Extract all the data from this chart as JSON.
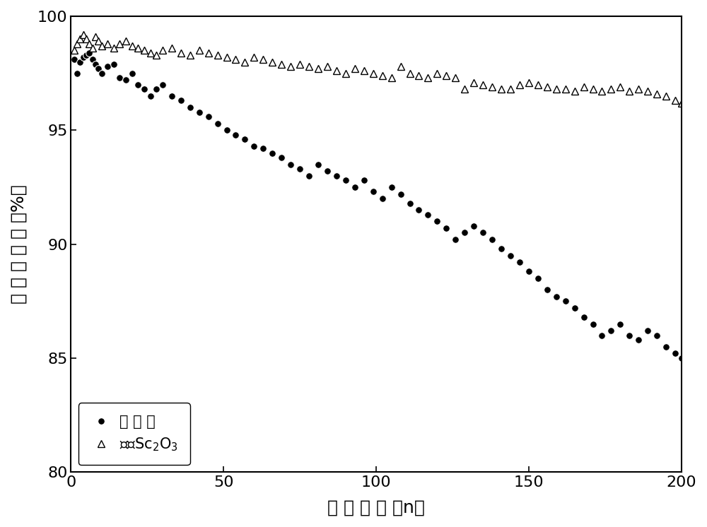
{
  "title": "",
  "xlabel": "循 环 周 数 （n）",
  "ylabel": "容 量 保 持 率 （%）",
  "xlim": [
    0,
    200
  ],
  "ylim": [
    80,
    100
  ],
  "xticks": [
    0,
    50,
    100,
    150,
    200
  ],
  "yticks": [
    80,
    85,
    90,
    95,
    100
  ],
  "legend_labels": [
    "未 包 覆",
    "包覆Sc$_2$O$_3$"
  ],
  "background_color": "#ffffff",
  "uncoated_x": [
    1,
    2,
    3,
    4,
    5,
    6,
    7,
    8,
    9,
    10,
    12,
    14,
    16,
    18,
    20,
    22,
    24,
    26,
    28,
    30,
    33,
    36,
    39,
    42,
    45,
    48,
    51,
    54,
    57,
    60,
    63,
    66,
    69,
    72,
    75,
    78,
    81,
    84,
    87,
    90,
    93,
    96,
    99,
    102,
    105,
    108,
    111,
    114,
    117,
    120,
    123,
    126,
    129,
    132,
    135,
    138,
    141,
    144,
    147,
    150,
    153,
    156,
    159,
    162,
    165,
    168,
    171,
    174,
    177,
    180,
    183,
    186,
    189,
    192,
    195,
    198,
    200
  ],
  "uncoated_y": [
    98.1,
    97.5,
    98.0,
    98.2,
    98.3,
    98.4,
    98.1,
    97.9,
    97.7,
    97.5,
    97.8,
    97.9,
    97.3,
    97.2,
    97.5,
    97.0,
    96.8,
    96.5,
    96.8,
    97.0,
    96.5,
    96.3,
    96.0,
    95.8,
    95.6,
    95.3,
    95.0,
    94.8,
    94.6,
    94.3,
    94.2,
    94.0,
    93.8,
    93.5,
    93.3,
    93.0,
    93.5,
    93.2,
    93.0,
    92.8,
    92.5,
    92.8,
    92.3,
    92.0,
    92.5,
    92.2,
    91.8,
    91.5,
    91.3,
    91.0,
    90.7,
    90.2,
    90.5,
    90.8,
    90.5,
    90.2,
    89.8,
    89.5,
    89.2,
    88.8,
    88.5,
    88.0,
    87.7,
    87.5,
    87.2,
    86.8,
    86.5,
    86.0,
    86.2,
    86.5,
    86.0,
    85.8,
    86.2,
    86.0,
    85.5,
    85.2,
    85.0
  ],
  "coated_x": [
    1,
    2,
    3,
    4,
    5,
    6,
    7,
    8,
    9,
    10,
    12,
    14,
    16,
    18,
    20,
    22,
    24,
    26,
    28,
    30,
    33,
    36,
    39,
    42,
    45,
    48,
    51,
    54,
    57,
    60,
    63,
    66,
    69,
    72,
    75,
    78,
    81,
    84,
    87,
    90,
    93,
    96,
    99,
    102,
    105,
    108,
    111,
    114,
    117,
    120,
    123,
    126,
    129,
    132,
    135,
    138,
    141,
    144,
    147,
    150,
    153,
    156,
    159,
    162,
    165,
    168,
    171,
    174,
    177,
    180,
    183,
    186,
    189,
    192,
    195,
    198,
    200
  ],
  "coated_y": [
    98.5,
    98.8,
    99.0,
    99.2,
    99.0,
    98.8,
    98.6,
    99.1,
    98.9,
    98.7,
    98.8,
    98.6,
    98.8,
    98.9,
    98.7,
    98.6,
    98.5,
    98.4,
    98.3,
    98.5,
    98.6,
    98.4,
    98.3,
    98.5,
    98.4,
    98.3,
    98.2,
    98.1,
    98.0,
    98.2,
    98.1,
    98.0,
    97.9,
    97.8,
    97.9,
    97.8,
    97.7,
    97.8,
    97.6,
    97.5,
    97.7,
    97.6,
    97.5,
    97.4,
    97.3,
    97.8,
    97.5,
    97.4,
    97.3,
    97.5,
    97.4,
    97.3,
    96.8,
    97.1,
    97.0,
    96.9,
    96.8,
    96.8,
    97.0,
    97.1,
    97.0,
    96.9,
    96.8,
    96.8,
    96.7,
    96.9,
    96.8,
    96.7,
    96.8,
    96.9,
    96.7,
    96.8,
    96.7,
    96.6,
    96.5,
    96.3,
    96.2
  ]
}
